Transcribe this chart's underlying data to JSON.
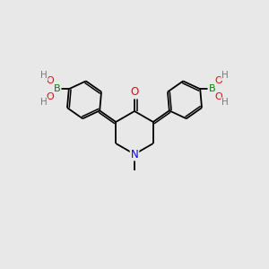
{
  "bg_color": "#e8e8e8",
  "bond_color": "#000000",
  "atom_colors": {
    "O": "#ff0000",
    "N": "#0000ff",
    "B": "#008000",
    "H": "#7a7a7a",
    "C": "#000000"
  },
  "fig_width": 3.0,
  "fig_height": 3.0,
  "dpi": 100,
  "lw": 1.3,
  "fs": 7.5
}
